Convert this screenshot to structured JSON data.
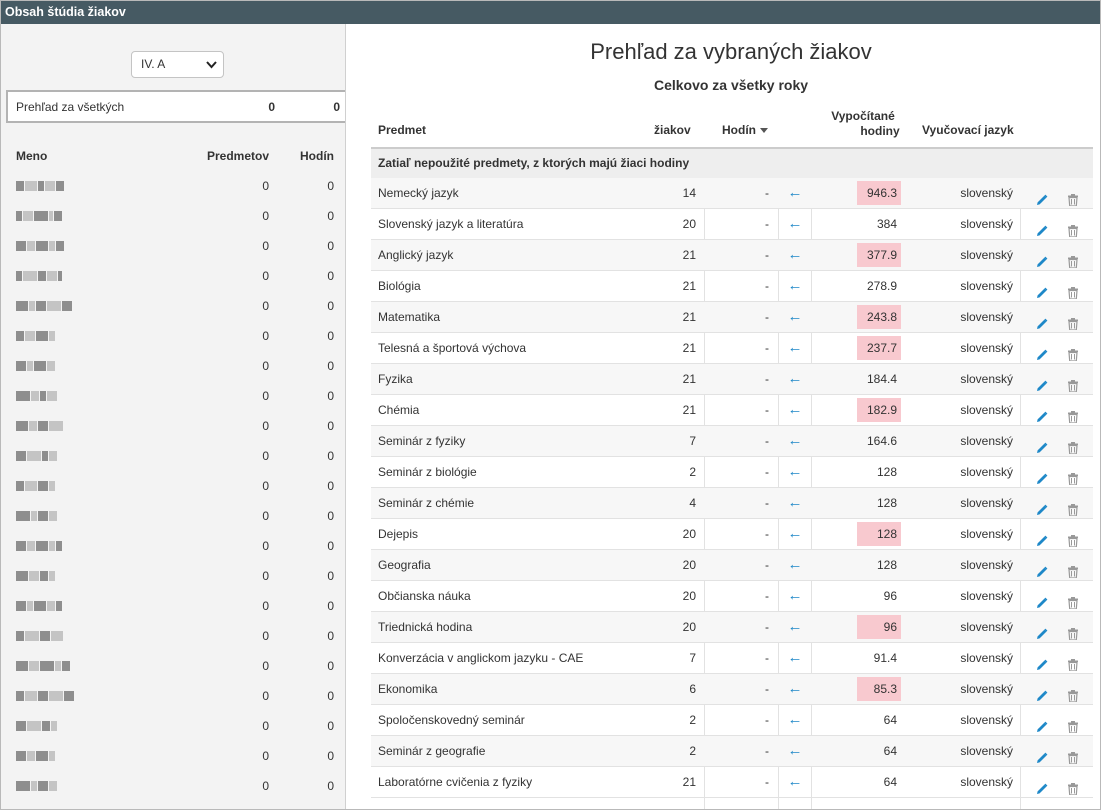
{
  "window": {
    "title": "Obsah štúdia žiakov"
  },
  "sidebar": {
    "class_selector": {
      "value": "IV. A",
      "icon": "chevron-down-icon"
    },
    "summary": {
      "label": "Prehľad za všetkých",
      "subjects": "0",
      "hours": "0"
    },
    "columns": {
      "name": "Meno",
      "subjects": "Predmetov",
      "hours": "Hodín"
    },
    "students": [
      {
        "subjects": "0",
        "hours": "0"
      },
      {
        "subjects": "0",
        "hours": "0"
      },
      {
        "subjects": "0",
        "hours": "0"
      },
      {
        "subjects": "0",
        "hours": "0"
      },
      {
        "subjects": "0",
        "hours": "0"
      },
      {
        "subjects": "0",
        "hours": "0"
      },
      {
        "subjects": "0",
        "hours": "0"
      },
      {
        "subjects": "0",
        "hours": "0"
      },
      {
        "subjects": "0",
        "hours": "0"
      },
      {
        "subjects": "0",
        "hours": "0"
      },
      {
        "subjects": "0",
        "hours": "0"
      },
      {
        "subjects": "0",
        "hours": "0"
      },
      {
        "subjects": "0",
        "hours": "0"
      },
      {
        "subjects": "0",
        "hours": "0"
      },
      {
        "subjects": "0",
        "hours": "0"
      },
      {
        "subjects": "0",
        "hours": "0"
      },
      {
        "subjects": "0",
        "hours": "0"
      },
      {
        "subjects": "0",
        "hours": "0"
      },
      {
        "subjects": "0",
        "hours": "0"
      },
      {
        "subjects": "0",
        "hours": "0"
      },
      {
        "subjects": "0",
        "hours": "0"
      }
    ]
  },
  "main": {
    "title": "Prehľad za vybraných žiakov",
    "subtitle": "Celkovo za všetky roky",
    "columns": {
      "subject": "Predmet",
      "students": "žiakov",
      "hours": "Hodín",
      "computed_line1": "Vypočítané",
      "computed_line2": "hodiny",
      "language": "Vyučovací jazyk"
    },
    "section_label": "Zatiaľ nepoužité predmety, z ktorých majú žiaci hodiny",
    "highlight_color": "#f8c9cf",
    "row_icons": {
      "arrow": "←",
      "edit": "pencil-icon",
      "delete": "trash-icon"
    },
    "rows": [
      {
        "subject": "Nemecký jazyk",
        "students": "14",
        "hours": "-",
        "computed": "946.3",
        "highlight": true,
        "language": "slovenský"
      },
      {
        "subject": "Slovenský jazyk a literatúra",
        "students": "20",
        "hours": "-",
        "computed": "384",
        "highlight": false,
        "language": "slovenský"
      },
      {
        "subject": "Anglický jazyk",
        "students": "21",
        "hours": "-",
        "computed": "377.9",
        "highlight": true,
        "language": "slovenský"
      },
      {
        "subject": "Biológia",
        "students": "21",
        "hours": "-",
        "computed": "278.9",
        "highlight": false,
        "language": "slovenský"
      },
      {
        "subject": "Matematika",
        "students": "21",
        "hours": "-",
        "computed": "243.8",
        "highlight": true,
        "language": "slovenský"
      },
      {
        "subject": "Telesná a športová výchova",
        "students": "21",
        "hours": "-",
        "computed": "237.7",
        "highlight": true,
        "language": "slovenský"
      },
      {
        "subject": "Fyzika",
        "students": "21",
        "hours": "-",
        "computed": "184.4",
        "highlight": false,
        "language": "slovenský"
      },
      {
        "subject": "Chémia",
        "students": "21",
        "hours": "-",
        "computed": "182.9",
        "highlight": true,
        "language": "slovenský"
      },
      {
        "subject": "Seminár z fyziky",
        "students": "7",
        "hours": "-",
        "computed": "164.6",
        "highlight": false,
        "language": "slovenský"
      },
      {
        "subject": "Seminár z biológie",
        "students": "2",
        "hours": "-",
        "computed": "128",
        "highlight": false,
        "language": "slovenský"
      },
      {
        "subject": "Seminár z chémie",
        "students": "4",
        "hours": "-",
        "computed": "128",
        "highlight": false,
        "language": "slovenský"
      },
      {
        "subject": "Dejepis",
        "students": "20",
        "hours": "-",
        "computed": "128",
        "highlight": true,
        "language": "slovenský"
      },
      {
        "subject": "Geografia",
        "students": "20",
        "hours": "-",
        "computed": "128",
        "highlight": false,
        "language": "slovenský"
      },
      {
        "subject": "Občianska náuka",
        "students": "20",
        "hours": "-",
        "computed": "96",
        "highlight": false,
        "language": "slovenský"
      },
      {
        "subject": "Triednická hodina",
        "students": "20",
        "hours": "-",
        "computed": "96",
        "highlight": true,
        "language": "slovenský"
      },
      {
        "subject": "Konverzácia v anglickom jazyku - CAE",
        "students": "7",
        "hours": "-",
        "computed": "91.4",
        "highlight": false,
        "language": "slovenský"
      },
      {
        "subject": "Ekonomika",
        "students": "6",
        "hours": "-",
        "computed": "85.3",
        "highlight": true,
        "language": "slovenský"
      },
      {
        "subject": "Spoločenskovedný seminár",
        "students": "2",
        "hours": "-",
        "computed": "64",
        "highlight": false,
        "language": "slovenský"
      },
      {
        "subject": "Seminár z geografie",
        "students": "2",
        "hours": "-",
        "computed": "64",
        "highlight": false,
        "language": "slovenský"
      },
      {
        "subject": "Laboratórne cvičenia z fyziky",
        "students": "21",
        "hours": "-",
        "computed": "64",
        "highlight": false,
        "language": "slovenský"
      }
    ]
  }
}
